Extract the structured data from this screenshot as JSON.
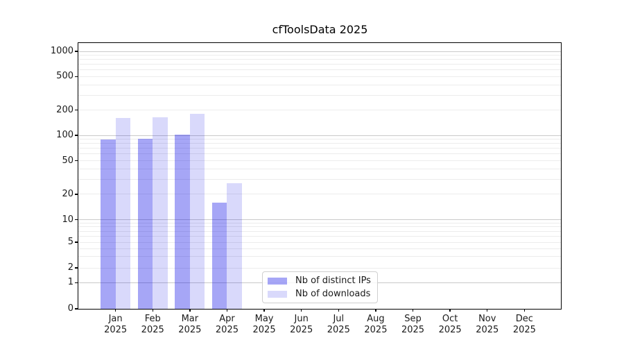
{
  "title": "cfToolsData 2025",
  "colors": {
    "ips": "rgba(0,0,230,0.35)",
    "downloads": "rgba(0,0,230,0.15)",
    "grid_major": "#c9c9c9",
    "grid_minor": "#ececec",
    "axis": "#000000",
    "text": "#1a1a1a",
    "legend_border": "#cfcfcf"
  },
  "chart_data": {
    "type": "bar",
    "title": "cfToolsData 2025",
    "categories": [
      "Jan",
      "Feb",
      "Mar",
      "Apr",
      "May",
      "Jun",
      "Jul",
      "Aug",
      "Sep",
      "Oct",
      "Nov",
      "Dec"
    ],
    "year_label": "2025",
    "series": [
      {
        "name": "Nb of distinct IPs",
        "color_key": "ips",
        "values": [
          90,
          91,
          102,
          16,
          null,
          null,
          null,
          null,
          null,
          null,
          null,
          null
        ]
      },
      {
        "name": "Nb of downloads",
        "color_key": "downloads",
        "values": [
          161,
          165,
          181,
          27,
          null,
          null,
          null,
          null,
          null,
          null,
          null,
          null
        ]
      }
    ],
    "y_axis": {
      "scale": "log-with-zero-baseline",
      "tick_values": [
        0,
        1,
        2,
        5,
        10,
        20,
        50,
        100,
        200,
        500,
        1000
      ],
      "tick_labels": [
        "0",
        "1",
        "2",
        "5",
        "10",
        "20",
        "50",
        "100",
        "200",
        "500",
        "1000"
      ],
      "major_grid_values": [
        1,
        10,
        100,
        1000
      ]
    },
    "xlabel": "",
    "ylabel": "",
    "grid": true,
    "legend_position": "inside-bottom-center"
  }
}
